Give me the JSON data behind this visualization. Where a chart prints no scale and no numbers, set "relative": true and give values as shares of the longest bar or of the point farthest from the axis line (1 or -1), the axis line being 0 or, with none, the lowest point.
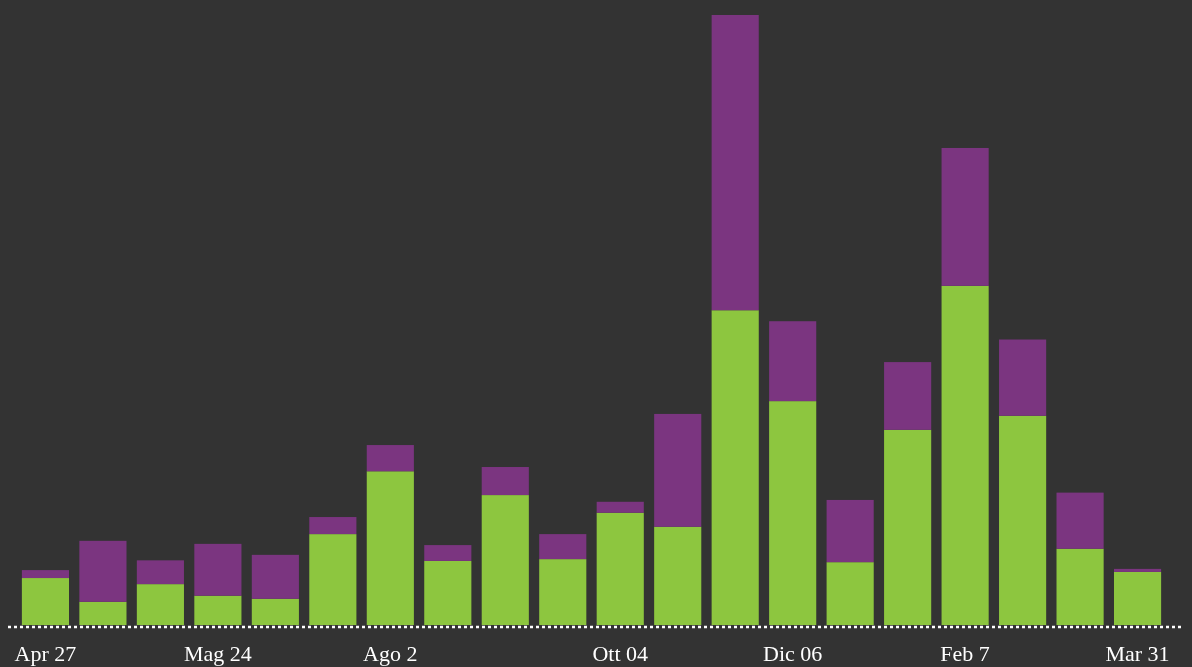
{
  "chart_data": {
    "type": "bar",
    "stacked": true,
    "relative": true,
    "categories": [
      "Apr 27",
      null,
      null,
      "Mag 24",
      null,
      null,
      "Ago 2",
      null,
      null,
      null,
      "Ott 04",
      null,
      null,
      "Dic 06",
      null,
      null,
      "Feb 7",
      null,
      null,
      "Mar 31"
    ],
    "series": [
      {
        "color": "#8dc63f",
        "values": [
          0.077,
          0.038,
          0.067,
          0.048,
          0.043,
          0.149,
          0.252,
          0.105,
          0.213,
          0.108,
          0.184,
          0.161,
          0.516,
          0.367,
          0.103,
          0.32,
          0.556,
          0.343,
          0.125,
          0.087
        ]
      },
      {
        "color": "#7b3580",
        "values": [
          0.013,
          0.1,
          0.039,
          0.085,
          0.072,
          0.028,
          0.043,
          0.026,
          0.046,
          0.041,
          0.018,
          0.185,
          0.484,
          0.131,
          0.102,
          0.111,
          0.226,
          0.125,
          0.092,
          0.005
        ]
      }
    ]
  }
}
